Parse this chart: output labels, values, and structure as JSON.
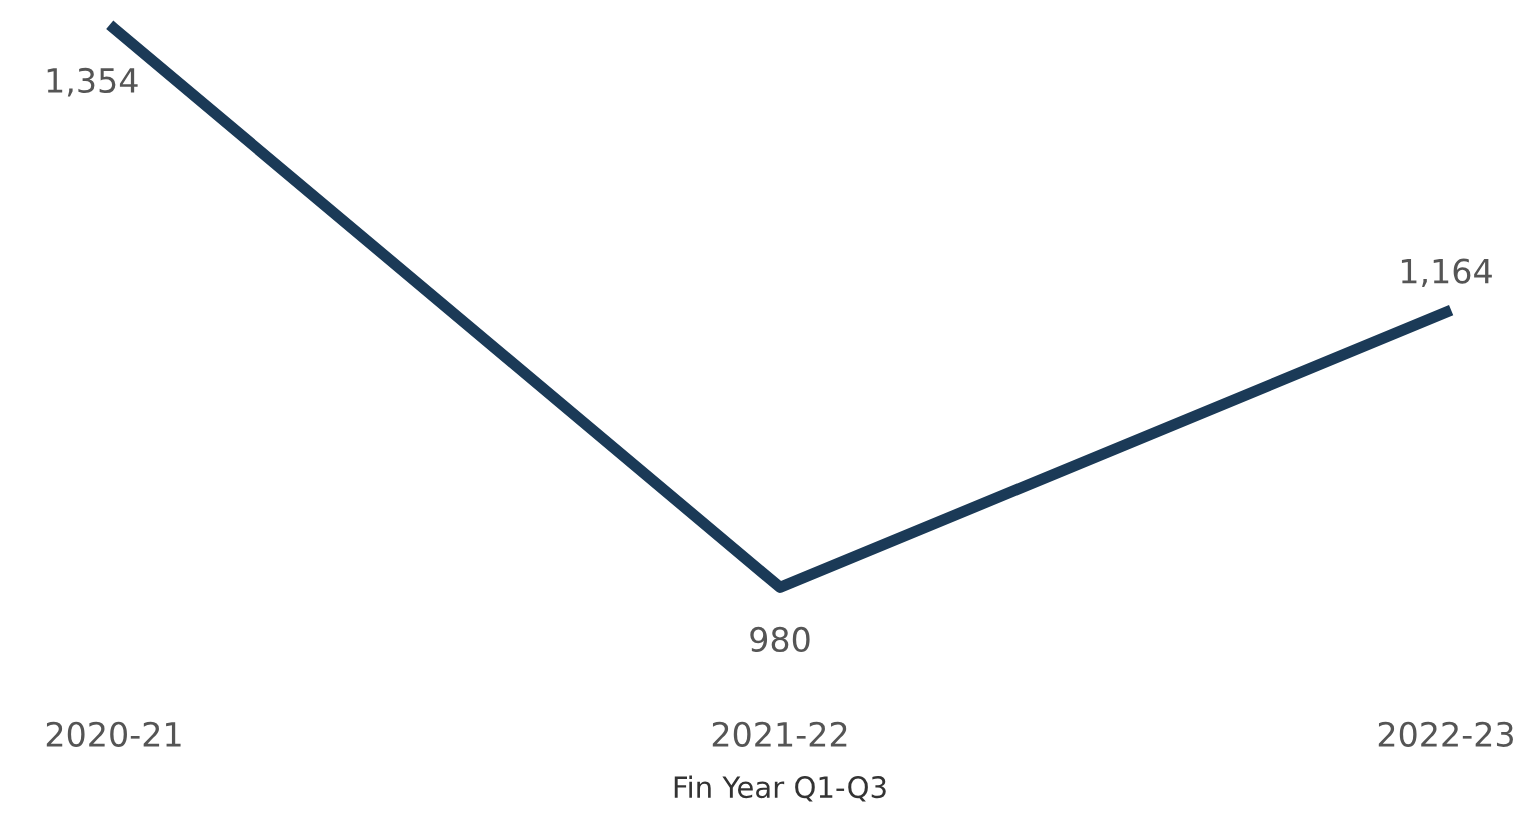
{
  "chart_data": {
    "type": "line",
    "xlabel": "Fin Year Q1-Q3",
    "categories": [
      "2020-21",
      "2021-22",
      "2022-23"
    ],
    "series": [
      {
        "color": "#1b3a57",
        "values": [
          1354,
          980,
          1164
        ],
        "value_labels": [
          "1,354",
          "980",
          "1,164"
        ]
      }
    ],
    "tick_labels": "x",
    "grid": false,
    "marker": "none",
    "line_style": "solid"
  }
}
